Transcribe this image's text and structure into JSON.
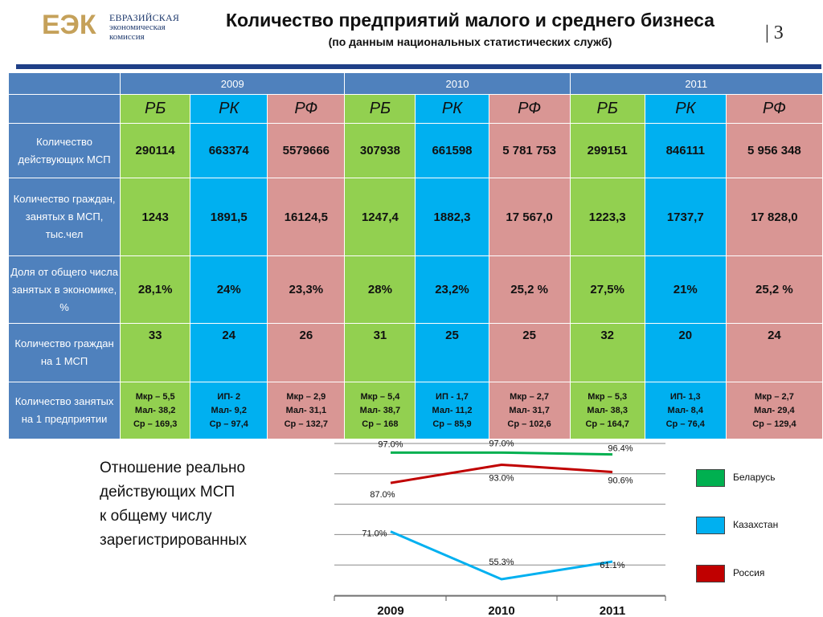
{
  "header": {
    "logo_mark": "ЕЭК",
    "logo_line1": "ЕВРАЗИЙСКАЯ",
    "logo_line2": "экономическая",
    "logo_line3": "комиссия",
    "title": "Количество предприятий малого и среднего бизнеса",
    "subtitle": "(по данным национальных статистических служб)",
    "page_number": "| 3"
  },
  "table": {
    "years": [
      "2009",
      "2010",
      "2011"
    ],
    "countries": [
      "РБ",
      "РК",
      "РФ",
      "РБ",
      "РК",
      "РФ",
      "РБ",
      "РК",
      "РФ"
    ],
    "rows": [
      {
        "label": "Количество действующих МСП",
        "cells": [
          "290114",
          "663374",
          "5579666",
          "307938",
          "661598",
          "5 781 753",
          "299151",
          "846111",
          "5 956 348"
        ]
      },
      {
        "label": "Количество граждан, занятых в МСП, тыс.чел",
        "cells": [
          "1243",
          "1891,5",
          "16124,5",
          "1247,4",
          "1882,3",
          "17 567,0",
          "1223,3",
          "1737,7",
          "17 828,0"
        ]
      },
      {
        "label": "Доля от общего числа занятых в экономике, %",
        "cells": [
          "28,1%",
          "24%",
          "23,3%",
          "28%",
          "23,2%",
          "25,2 %",
          "27,5%",
          "21%",
          "25,2 %"
        ]
      },
      {
        "label": "Количество граждан на 1 МСП",
        "cells": [
          "33",
          "24",
          "26",
          "31",
          "25",
          "25",
          "32",
          "20",
          "24"
        ]
      },
      {
        "label": "Количество занятых на 1 предприятии",
        "cells": [
          [
            "Мкр – 5,5",
            "Мал- 38,2",
            "Ср – 169,3"
          ],
          [
            "ИП- 2",
            "Мал- 9,2",
            "Ср – 97,4"
          ],
          [
            "Мкр – 2,9",
            "Мал- 31,1",
            "Ср – 132,7"
          ],
          [
            "Мкр – 5,4",
            "Мал- 38,7",
            "Ср – 168"
          ],
          [
            "ИП - 1,7",
            "Мал- 11,2",
            "Ср – 85,9"
          ],
          [
            "Мкр – 2,7",
            "Мал- 31,7",
            "Ср – 102,6"
          ],
          [
            "Мкр – 5,3",
            "Мал- 38,3",
            "Ср – 164,7"
          ],
          [
            "ИП- 1,3",
            "Мал- 8,4",
            "Ср – 76,4"
          ],
          [
            "Мкр – 2,7",
            "Мал- 29,4",
            "Ср – 129,4"
          ]
        ]
      }
    ]
  },
  "chart_caption": "Отношение реально\nдействующих МСП\nк общему числу\nзарегистрированных",
  "colors": {
    "header_blue": "#4f81bd",
    "belarus": "#00b050",
    "kazakhstan": "#00b0f0",
    "russia": "#c00000",
    "rule": "#1f3f87"
  },
  "chart_data": {
    "type": "line",
    "categories": [
      "2009",
      "2010",
      "2011"
    ],
    "series": [
      {
        "name": "Беларусь",
        "color": "#00b050",
        "values": [
          97.0,
          97.0,
          96.4
        ],
        "labels": [
          "97.0%",
          "97.0%",
          "96.4%"
        ]
      },
      {
        "name": "Россия",
        "color": "#c00000",
        "values": [
          87.0,
          93.0,
          90.6
        ],
        "labels": [
          "87.0%",
          "93.0%",
          "90.6%"
        ]
      },
      {
        "name": "Казахстан",
        "color": "#00b0f0",
        "values": [
          71.0,
          55.3,
          61.1
        ],
        "labels": [
          "71.0%",
          "55.3%",
          "61.1%"
        ]
      }
    ],
    "legend": [
      "Беларусь",
      "Казахстан",
      "Россия"
    ],
    "legend_position": "right",
    "grid": true,
    "ylim": [
      50,
      100
    ]
  }
}
